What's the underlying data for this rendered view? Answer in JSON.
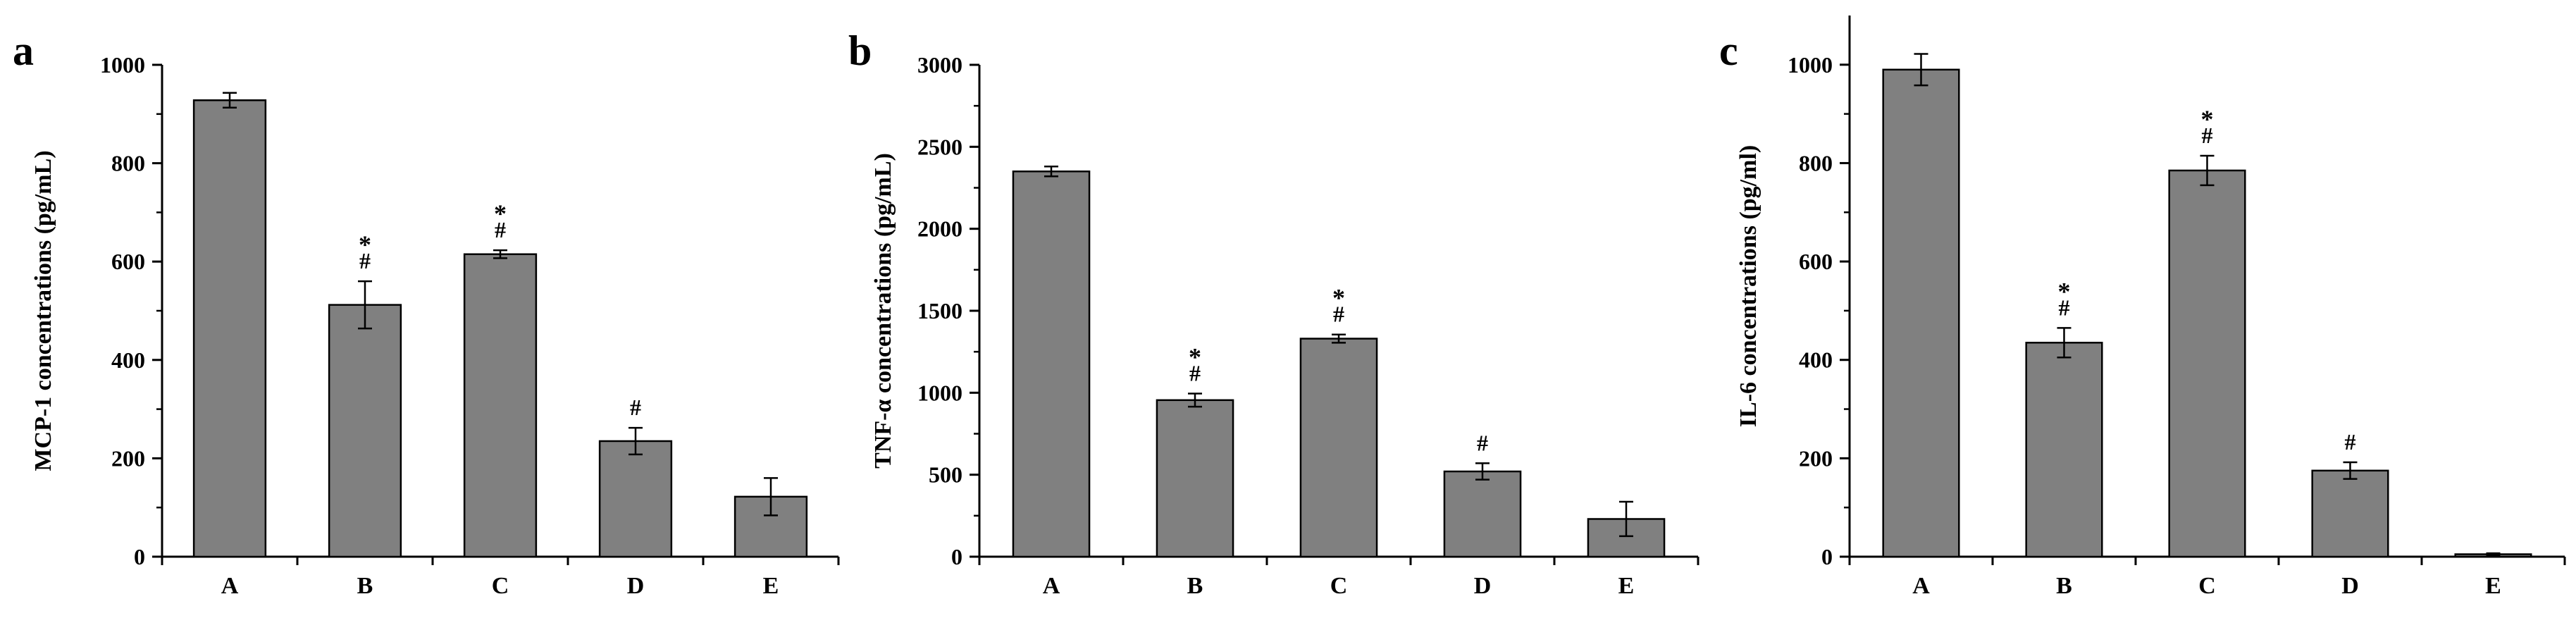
{
  "panels": [
    {
      "label": "a"
    },
    {
      "label": "b"
    },
    {
      "label": "c"
    }
  ],
  "chart_data": [
    {
      "type": "bar",
      "panel": "a",
      "ylabel": "MCP-1 concentrations (pg/mL)",
      "categories": [
        "A",
        "B",
        "C",
        "D",
        "E"
      ],
      "values": [
        928,
        512,
        615,
        235,
        122
      ],
      "errors": [
        15,
        48,
        8,
        27,
        38
      ],
      "annotations": [
        [],
        [
          "*",
          "#"
        ],
        [
          "*",
          "#"
        ],
        [
          "#"
        ],
        []
      ],
      "ylim": [
        0,
        1000
      ],
      "yticks": [
        0,
        200,
        400,
        600,
        800,
        1000
      ],
      "ytick_labels": [
        "0",
        "200",
        "400",
        "600",
        "800",
        "1000"
      ],
      "bar_color": "#808080"
    },
    {
      "type": "bar",
      "panel": "b",
      "ylabel": "TNF-α concentrations (pg/mL)",
      "categories": [
        "A",
        "B",
        "C",
        "D",
        "E"
      ],
      "values": [
        2350,
        955,
        1330,
        520,
        230
      ],
      "errors": [
        30,
        40,
        25,
        50,
        105
      ],
      "annotations": [
        [],
        [
          "*",
          "#"
        ],
        [
          "*",
          "#"
        ],
        [
          "#"
        ],
        []
      ],
      "ylim": [
        0,
        3000
      ],
      "yticks": [
        0,
        500,
        1000,
        1500,
        2000,
        2500,
        3000
      ],
      "ytick_labels": [
        "0",
        "500",
        "1000",
        "1500",
        "2000",
        "2500",
        "3000"
      ],
      "bar_color": "#808080"
    },
    {
      "type": "bar",
      "panel": "c",
      "ylabel": "IL-6 concentrations (pg/ml)",
      "categories": [
        "A",
        "B",
        "C",
        "D",
        "E"
      ],
      "values": [
        990,
        435,
        785,
        175,
        5
      ],
      "errors": [
        32,
        30,
        30,
        17,
        2
      ],
      "annotations": [
        [],
        [
          "*",
          "#"
        ],
        [
          "*",
          "#"
        ],
        [
          "#"
        ],
        []
      ],
      "ylim": [
        0,
        1100
      ],
      "yticks": [
        0,
        200,
        400,
        600,
        800,
        1000
      ],
      "ytick_labels": [
        "0",
        "200",
        "400",
        "600",
        "800",
        "1000"
      ],
      "bar_color": "#808080"
    }
  ]
}
